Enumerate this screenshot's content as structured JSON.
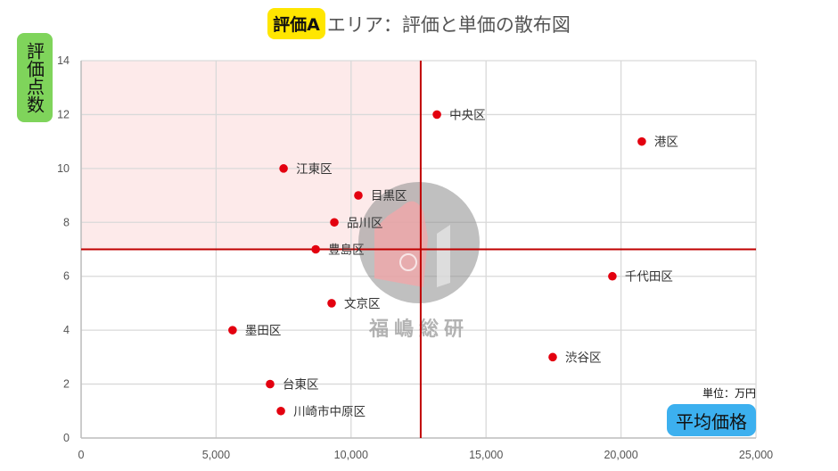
{
  "title": {
    "badge": "評価A",
    "text": "エリア：評価と単価の散布図",
    "badge_color": "#ffe600"
  },
  "axis_badges": {
    "y_label": "評価点数",
    "y_color": "#7fd45b",
    "x_label": "平均価格",
    "x_color": "#3cb0ef"
  },
  "unit_note": "単位：万円",
  "watermark": "福嶋総研",
  "chart_data": {
    "type": "scatter",
    "title": "評価Aエリア：評価と単価の散布図",
    "xlabel": "平均価格",
    "ylabel": "評価点数",
    "unit": "万円",
    "xlim": [
      0,
      25000
    ],
    "ylim": [
      0,
      14
    ],
    "x_ticks": [
      "0",
      "5,000",
      "10,000",
      "15,000",
      "20,000",
      "25,000"
    ],
    "y_ticks": [
      "0",
      "2",
      "4",
      "6",
      "8",
      "10",
      "12",
      "14"
    ],
    "grid": true,
    "point_color": "#e3000f",
    "reference_lines": {
      "x_mean": 12580,
      "y_mean": 7.0,
      "color": "#c00000"
    },
    "highlight_region": {
      "x": [
        0,
        12580
      ],
      "y": [
        7.0,
        14
      ],
      "color": "#fdeaea"
    },
    "points": [
      {
        "label": "中央区",
        "x": 13180,
        "y": 12
      },
      {
        "label": "港区",
        "x": 20770,
        "y": 11
      },
      {
        "label": "江東区",
        "x": 7500,
        "y": 10
      },
      {
        "label": "目黒区",
        "x": 10270,
        "y": 9
      },
      {
        "label": "品川区",
        "x": 9380,
        "y": 8
      },
      {
        "label": "豊島区",
        "x": 8690,
        "y": 7
      },
      {
        "label": "千代田区",
        "x": 19680,
        "y": 6
      },
      {
        "label": "文京区",
        "x": 9280,
        "y": 5
      },
      {
        "label": "墨田区",
        "x": 5610,
        "y": 4
      },
      {
        "label": "渋谷区",
        "x": 17470,
        "y": 3
      },
      {
        "label": "台東区",
        "x": 7000,
        "y": 2
      },
      {
        "label": "川崎市中原区",
        "x": 7400,
        "y": 1
      }
    ]
  }
}
